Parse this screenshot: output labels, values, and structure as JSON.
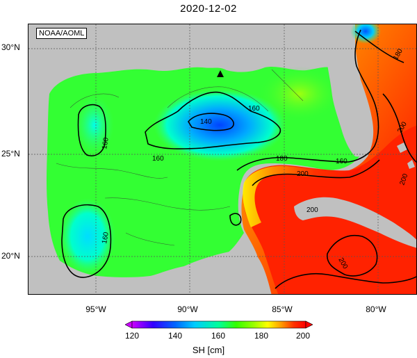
{
  "title": "2020-12-02",
  "source_label": "NOAA/AOML",
  "lat_labels": [
    "30°N",
    "25°N",
    "20°N"
  ],
  "lon_labels": [
    "95°W",
    "90°W",
    "85°W",
    "80°W"
  ],
  "contour_labels": [
    "140",
    "160",
    "160",
    "160",
    "160",
    "160",
    "180",
    "180",
    "200",
    "200",
    "200",
    "200",
    "200"
  ],
  "colorbar": {
    "ticks": [
      "120",
      "140",
      "160",
      "180",
      "200"
    ],
    "label": "SH [cm]",
    "colors": [
      "#cc00ff",
      "#3300ff",
      "#0066ff",
      "#00ccff",
      "#00ff99",
      "#33ff00",
      "#99ff00",
      "#ffff00",
      "#ff9900",
      "#ff3300",
      "#ff0000"
    ]
  },
  "colors": {
    "land": "#c0c0c0",
    "gulf_green": "#33ff33",
    "low_blue": "#0066ff",
    "high_red": "#ff2200"
  }
}
